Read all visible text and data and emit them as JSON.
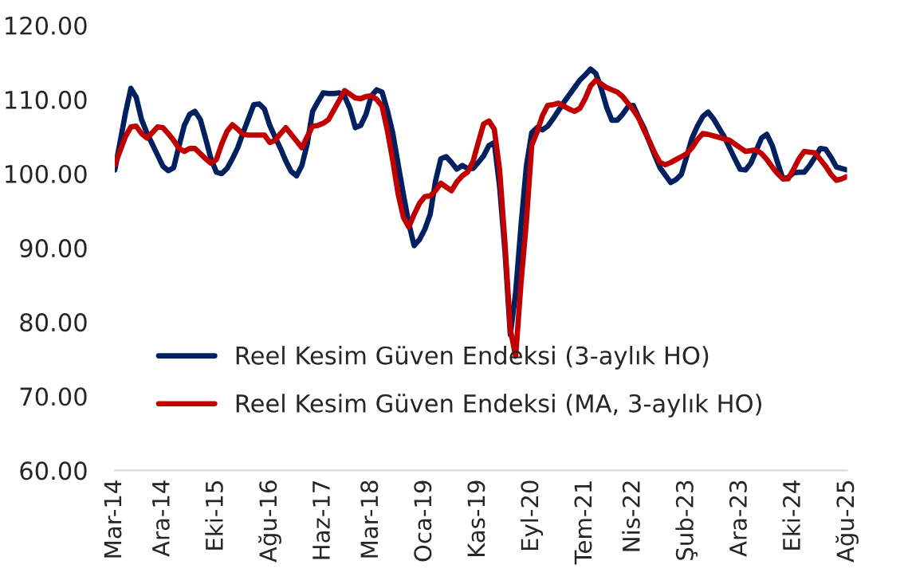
{
  "chart_data": {
    "type": "line",
    "categories": [
      "Mar-14",
      null,
      null,
      null,
      null,
      null,
      null,
      null,
      null,
      "Ara-14",
      null,
      null,
      null,
      null,
      null,
      null,
      null,
      null,
      null,
      "Eki-15",
      null,
      null,
      null,
      null,
      null,
      null,
      null,
      null,
      null,
      "Ağu-16",
      null,
      null,
      null,
      null,
      null,
      null,
      null,
      null,
      null,
      "Haz-17",
      null,
      null,
      null,
      null,
      null,
      null,
      null,
      null,
      "Mar-18",
      null,
      null,
      null,
      null,
      null,
      null,
      null,
      null,
      null,
      "Oca-19",
      null,
      null,
      null,
      null,
      null,
      null,
      null,
      null,
      null,
      "Kas-19",
      null,
      null,
      null,
      null,
      null,
      null,
      null,
      null,
      null,
      "Eyl-20",
      null,
      null,
      null,
      null,
      null,
      null,
      null,
      null,
      null,
      "Tem-21",
      null,
      null,
      null,
      null,
      null,
      null,
      null,
      null,
      "Nis-22",
      null,
      null,
      null,
      null,
      null,
      null,
      null,
      null,
      null,
      "Şub-23",
      null,
      null,
      null,
      null,
      null,
      null,
      null,
      null,
      null,
      "Ara-23",
      null,
      null,
      null,
      null,
      null,
      null,
      null,
      null,
      null,
      "Eki-24",
      null,
      null,
      null,
      null,
      null,
      null,
      null,
      null,
      null,
      "Ağu-25"
    ],
    "ylim": [
      60,
      120
    ],
    "yticks": [
      {
        "value": 60,
        "label": "60.00"
      },
      {
        "value": 70,
        "label": "70.00"
      },
      {
        "value": 80,
        "label": "80.00"
      },
      {
        "value": 90,
        "label": "90.00"
      },
      {
        "value": 100,
        "label": "100.00"
      },
      {
        "value": 110,
        "label": "110.00"
      },
      {
        "value": 120,
        "label": "120.00"
      }
    ],
    "legend": "bottom left",
    "series": [
      {
        "name": "Reel Kesim Güven Endeksi (3-aylık HO)",
        "color": "#002060",
        "values": [
          100.5,
          104.3,
          108.2,
          111.5,
          110.3,
          107.3,
          105.5,
          104,
          102.5,
          101,
          100.4,
          100.8,
          103.7,
          106.5,
          108,
          108.4,
          107.3,
          104.7,
          102,
          100.2,
          100,
          100.7,
          102,
          103.5,
          105.5,
          107.4,
          109.3,
          109.4,
          108.7,
          106.5,
          104.9,
          103.4,
          101.7,
          100.3,
          99.7,
          101.1,
          104,
          108.4,
          109.7,
          110.9,
          110.8,
          110.8,
          110.9,
          110.4,
          108.8,
          106.2,
          106.5,
          108,
          110.5,
          111.3,
          111,
          108.5,
          105.5,
          101.3,
          97.2,
          93.3,
          90.3,
          91.1,
          92.5,
          94.5,
          99,
          102,
          102.3,
          101.5,
          100.6,
          101.1,
          100.7,
          100.7,
          101.5,
          102.4,
          103.8,
          104.2,
          98.2,
          89.5,
          78.3,
          84,
          93,
          101,
          105.5,
          106.2,
          105.9,
          106.4,
          107.4,
          108.5,
          109.6,
          110.6,
          111.6,
          112.6,
          113.3,
          114.1,
          113.5,
          111.5,
          109,
          107.2,
          107.2,
          108,
          109,
          109.2,
          107.6,
          106.2,
          104.3,
          102.5,
          100.8,
          99.8,
          98.8,
          99.2,
          99.9,
          102.3,
          104.8,
          106.4,
          107.7,
          108.3,
          107.4,
          106.2,
          105,
          103.5,
          102,
          100.6,
          100.5,
          101.4,
          103.1,
          104.8,
          105.3,
          103.8,
          101.5,
          99.3,
          99.5,
          100.1,
          100.2,
          100.2,
          101.1,
          102.2,
          103.4,
          103.3,
          102.2,
          100.9,
          100.7,
          100.5
        ]
      },
      {
        "name": "Reel Kesim Güven Endeksi (MA, 3-aylık HO)",
        "color": "#c00000",
        "values": [
          101.2,
          103.1,
          105,
          106.3,
          106.4,
          105.4,
          104.8,
          105.5,
          106.3,
          106.2,
          105.4,
          104.5,
          103.4,
          103,
          103.4,
          103.4,
          102.7,
          102,
          101.4,
          101.9,
          104,
          105.7,
          106.6,
          106,
          105.3,
          105.2,
          105.2,
          105.2,
          105.2,
          104.2,
          104.5,
          105.4,
          106.2,
          105.3,
          104.4,
          103.5,
          105,
          106.4,
          106.5,
          106.8,
          107.3,
          108.6,
          109.9,
          111.2,
          110.7,
          110.2,
          110.1,
          110.4,
          110.5,
          110,
          109.1,
          105.8,
          101.8,
          97.3,
          94.1,
          92.8,
          94.5,
          96,
          96.9,
          97,
          97.7,
          98.7,
          98.2,
          97.7,
          98.9,
          99.7,
          100.2,
          101.6,
          104.2,
          106.7,
          107.1,
          106,
          100.5,
          90.6,
          79,
          75.4,
          85.3,
          93.5,
          103.8,
          105.6,
          107.8,
          109.2,
          109.3,
          109.5,
          109.1,
          108.7,
          108.4,
          108.8,
          110.1,
          111.8,
          112.6,
          112.1,
          111.6,
          111.3,
          111,
          110.4,
          109.5,
          108.6,
          107.5,
          105.9,
          104.4,
          102.8,
          101.5,
          101.2,
          101.5,
          101.9,
          102.3,
          102.7,
          103.5,
          104.6,
          105.4,
          105.3,
          105.1,
          104.9,
          104.7,
          104.5,
          104,
          103.5,
          103,
          103.1,
          103.2,
          102.7,
          101.9,
          100.9,
          100,
          99.3,
          99.3,
          100.6,
          102,
          103,
          102.9,
          102.8,
          101.9,
          101,
          99.9,
          99.1,
          99.3,
          99.6
        ]
      }
    ]
  }
}
